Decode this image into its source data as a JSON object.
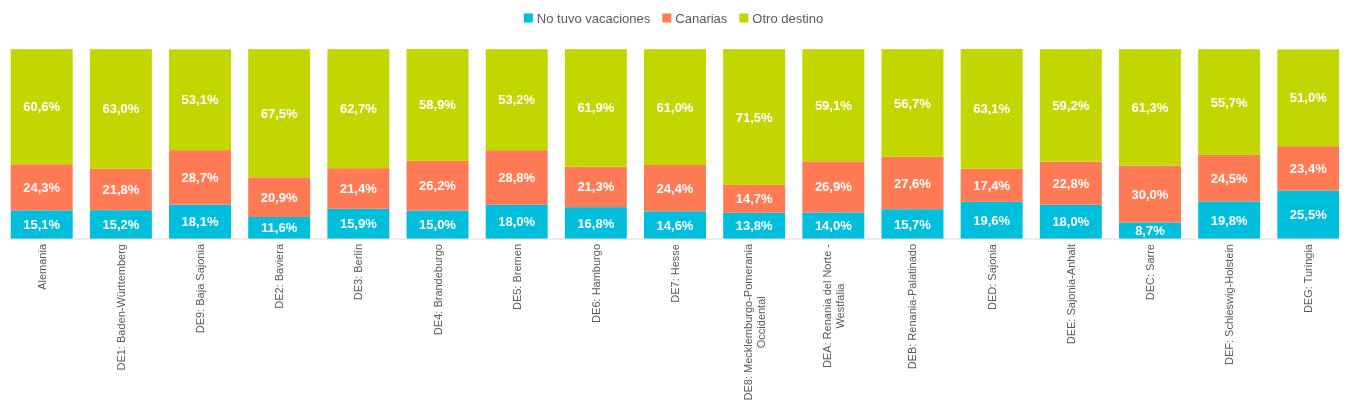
{
  "chart_data": {
    "type": "bar",
    "stacked": true,
    "legend": "top",
    "categories": [
      "Alemania",
      "DE1: Baden-Württemberg",
      "DE9: Baja Sajonia",
      "DE2: Baviera",
      "DE3: Berlín",
      "DE4: Brandeburgo",
      "DE5: Bremen",
      "DE6: Hamburgo",
      "DE7: Hesse",
      "DE8: Mecklemburgo-Pomerania Occidental",
      "DEA: Renania del Norte - Westfalia",
      "DEB: Renania-Palatinado",
      "DED: Sajonia",
      "DEE: Sajonia-Anhalt",
      "DEC: Sarre",
      "DEF: Schleswig-Holstein",
      "DEG: Turingia"
    ],
    "series": [
      {
        "name": "No tuvo vacaciones",
        "color": "#00bfdc",
        "values": [
          15.1,
          15.2,
          18.1,
          11.6,
          15.9,
          15.0,
          18.0,
          16.8,
          14.6,
          13.8,
          14.0,
          15.7,
          19.6,
          18.0,
          8.7,
          19.8,
          25.5
        ],
        "value_labels": [
          "15,1%",
          "15,2%",
          "18,1%",
          "11,6%",
          "15,9%",
          "15,0%",
          "18,0%",
          "16,8%",
          "14,6%",
          "13,8%",
          "14,0%",
          "15,7%",
          "19,6%",
          "18,0%",
          "8,7%",
          "19,8%",
          "25,5%"
        ]
      },
      {
        "name": "Canarias",
        "color": "#ff7a55",
        "values": [
          24.3,
          21.8,
          28.7,
          20.9,
          21.4,
          26.2,
          28.8,
          21.3,
          24.4,
          14.7,
          26.9,
          27.6,
          17.4,
          22.8,
          30.0,
          24.5,
          23.4
        ],
        "value_labels": [
          "24,3%",
          "21,8%",
          "28,7%",
          "20,9%",
          "21,4%",
          "26,2%",
          "28,8%",
          "21,3%",
          "24,4%",
          "14,7%",
          "26,9%",
          "27,6%",
          "17,4%",
          "22,8%",
          "30,0%",
          "24,5%",
          "23,4%"
        ]
      },
      {
        "name": "Otro destino",
        "color": "#c4d600",
        "values": [
          60.6,
          63.0,
          53.1,
          67.5,
          62.7,
          58.9,
          53.2,
          61.9,
          61.0,
          71.5,
          59.1,
          56.7,
          63.1,
          59.2,
          61.3,
          55.7,
          51.0
        ],
        "value_labels": [
          "60,6%",
          "63,0%",
          "53,1%",
          "67,5%",
          "62,7%",
          "58,9%",
          "53,2%",
          "61,9%",
          "61,0%",
          "71,5%",
          "59,1%",
          "56,7%",
          "63,1%",
          "59,2%",
          "61,3%",
          "55,7%",
          "51,0%"
        ]
      }
    ]
  }
}
